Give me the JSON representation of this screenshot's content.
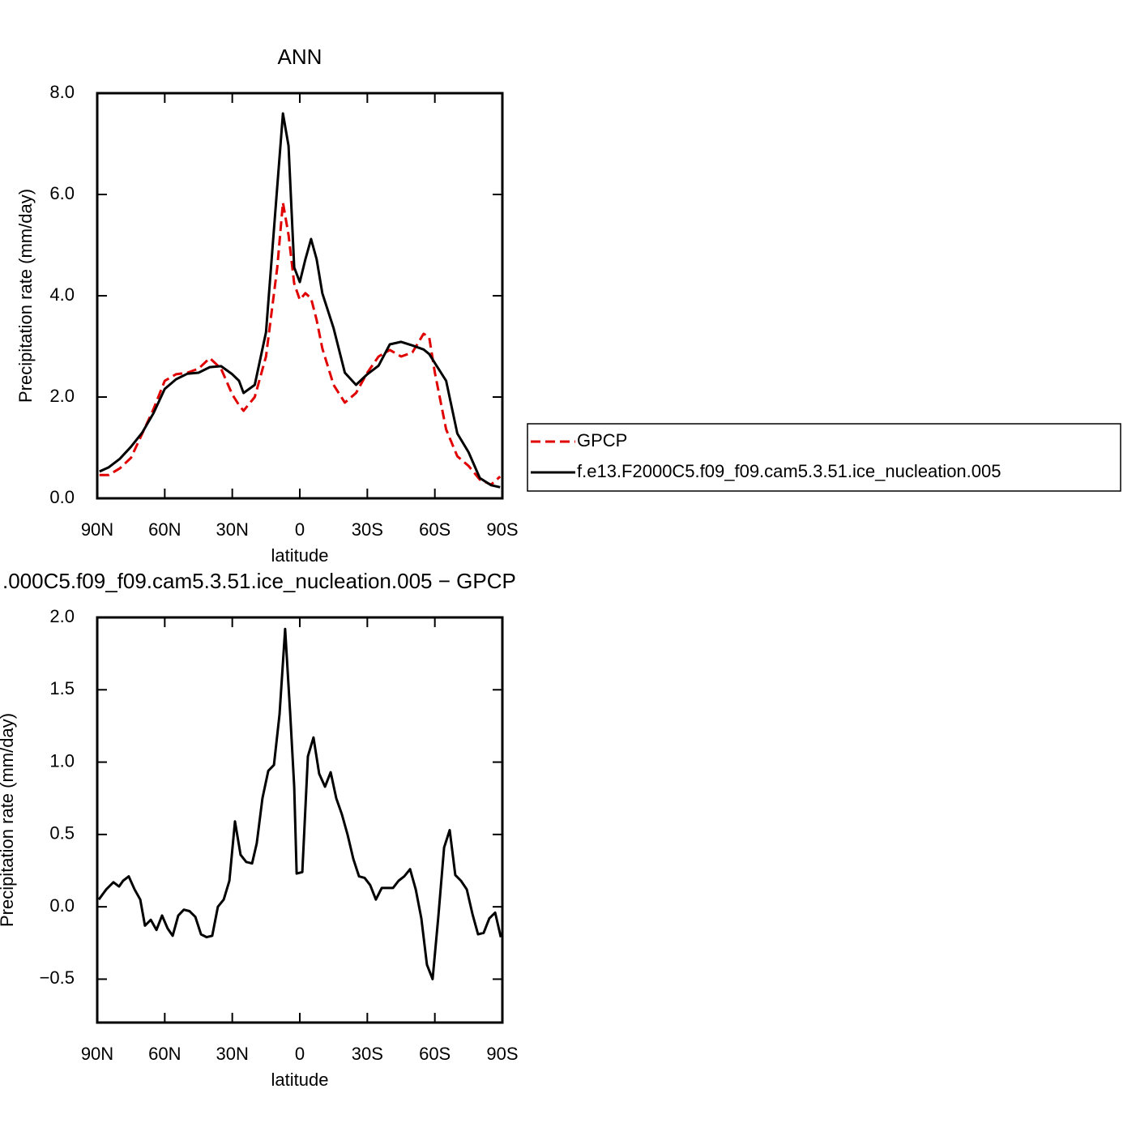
{
  "chart_data": [
    {
      "type": "line",
      "title": "ANN",
      "xlabel": "latitude",
      "ylabel": "Precipitation rate (mm/day)",
      "x": [
        89,
        85,
        80,
        75,
        70,
        65,
        60,
        55,
        50,
        45,
        40,
        35,
        30,
        27,
        25,
        20,
        15,
        10,
        7.5,
        5,
        2.5,
        0,
        -2.5,
        -5,
        -7.5,
        -10,
        -15,
        -20,
        -25,
        -30,
        -35,
        -40,
        -45,
        -50,
        -55,
        -57.5,
        -60,
        -65,
        -70,
        -75,
        -80,
        -85,
        -89
      ],
      "series": [
        {
          "name": "GPCP",
          "color": "#e00000",
          "linestyle": "dashed",
          "values": [
            0.46,
            0.46,
            0.59,
            0.8,
            1.28,
            1.76,
            2.32,
            2.45,
            2.48,
            2.56,
            2.77,
            2.56,
            2.05,
            1.84,
            1.73,
            2.0,
            2.8,
            4.56,
            5.84,
            5.2,
            4.24,
            3.92,
            4.05,
            3.95,
            3.52,
            2.96,
            2.24,
            1.89,
            2.08,
            2.48,
            2.8,
            2.93,
            2.8,
            2.88,
            3.25,
            3.18,
            2.48,
            1.36,
            0.83,
            0.64,
            0.37,
            0.27,
            0.43
          ]
        },
        {
          "name": "f.e13.F2000C5.f09_f09.cam5.3.51.ice_nucleation.005",
          "color": "#000000",
          "linestyle": "solid",
          "values": [
            0.53,
            0.61,
            0.78,
            1.02,
            1.3,
            1.68,
            2.16,
            2.35,
            2.46,
            2.48,
            2.59,
            2.61,
            2.45,
            2.32,
            2.08,
            2.24,
            3.28,
            6.16,
            7.6,
            6.96,
            4.56,
            4.27,
            4.72,
            5.12,
            4.72,
            4.05,
            3.36,
            2.48,
            2.24,
            2.45,
            2.62,
            3.04,
            3.09,
            3.02,
            2.94,
            2.85,
            2.67,
            2.32,
            1.28,
            0.91,
            0.4,
            0.26,
            0.22
          ]
        }
      ],
      "xlim": [
        90,
        -90
      ],
      "xticks": [
        {
          "value": 90,
          "label": "90N"
        },
        {
          "value": 60,
          "label": "60N"
        },
        {
          "value": 30,
          "label": "30N"
        },
        0,
        {
          "value": -30,
          "label": "30S"
        },
        {
          "value": -60,
          "label": "60S"
        },
        {
          "value": -90,
          "label": "90S"
        }
      ],
      "ylim": [
        0,
        8
      ],
      "yticks": [
        {
          "value": 0,
          "label": "0.0"
        },
        {
          "value": 2,
          "label": "2.0"
        },
        {
          "value": 4,
          "label": "4.0"
        },
        {
          "value": 6,
          "label": "6.0"
        },
        {
          "value": 8,
          "label": "8.0"
        }
      ],
      "legend": "right"
    },
    {
      "type": "line",
      "title": ".000C5.f09_f09.cam5.3.51.ice_nucleation.005 − GPCP",
      "xlabel": "latitude",
      "ylabel": "Precipitation rate (mm/day)",
      "x": [
        89.3,
        86.0,
        82.8,
        80.3,
        78.5,
        76.0,
        73.4,
        70.9,
        68.8,
        66.2,
        63.7,
        61.2,
        58.7,
        56.5,
        54.0,
        51.5,
        49.0,
        46.4,
        43.9,
        41.4,
        38.9,
        36.4,
        33.8,
        31.3,
        28.8,
        26.3,
        23.8,
        21.2,
        19.1,
        16.6,
        14.0,
        11.5,
        9.0,
        6.5,
        4.3,
        2.5,
        1.4,
        -1.1,
        -3.6,
        -6.1,
        -8.6,
        -11.2,
        -13.7,
        -16.2,
        -18.7,
        -21.2,
        -23.8,
        -26.3,
        -28.8,
        -31.3,
        -33.8,
        -36.4,
        -38.9,
        -41.4,
        -43.9,
        -46.4,
        -49.0,
        -51.5,
        -54.0,
        -56.5,
        -59.0,
        -61.6,
        -64.1,
        -66.6,
        -69.1,
        -71.6,
        -74.2,
        -76.7,
        -79.2,
        -81.7,
        -84.2,
        -86.8,
        -89.3
      ],
      "color": "#000000",
      "values": [
        0.05,
        0.12,
        0.17,
        0.14,
        0.18,
        0.21,
        0.12,
        0.05,
        -0.13,
        -0.09,
        -0.16,
        -0.06,
        -0.15,
        -0.2,
        -0.06,
        -0.02,
        -0.03,
        -0.07,
        -0.19,
        -0.21,
        -0.2,
        0.0,
        0.05,
        0.18,
        0.59,
        0.36,
        0.31,
        0.3,
        0.44,
        0.75,
        0.94,
        0.98,
        1.33,
        1.92,
        1.34,
        0.83,
        0.23,
        0.24,
        1.04,
        1.17,
        0.92,
        0.83,
        0.93,
        0.75,
        0.64,
        0.5,
        0.33,
        0.21,
        0.2,
        0.15,
        0.05,
        0.13,
        0.13,
        0.13,
        0.18,
        0.21,
        0.26,
        0.12,
        -0.08,
        -0.4,
        -0.5,
        -0.06,
        0.41,
        0.53,
        0.22,
        0.18,
        0.12,
        -0.05,
        -0.19,
        -0.18,
        -0.08,
        -0.04,
        -0.21
      ],
      "xlim": [
        90,
        -90
      ],
      "xticks": [
        {
          "value": 90,
          "label": "90N"
        },
        {
          "value": 60,
          "label": "60N"
        },
        {
          "value": 30,
          "label": "30N"
        },
        0,
        {
          "value": -30,
          "label": "30S"
        },
        {
          "value": -60,
          "label": "60S"
        },
        {
          "value": -90,
          "label": "90S"
        }
      ],
      "ylim": [
        -0.8,
        2.0
      ],
      "yticks": [
        {
          "value": -0.5,
          "label": "−0.5"
        },
        {
          "value": 0,
          "label": "0.0"
        },
        {
          "value": 0.5,
          "label": "0.5"
        },
        {
          "value": 1,
          "label": "1.0"
        },
        {
          "value": 1.5,
          "label": "1.5"
        },
        {
          "value": 2,
          "label": "2.0"
        }
      ]
    }
  ]
}
